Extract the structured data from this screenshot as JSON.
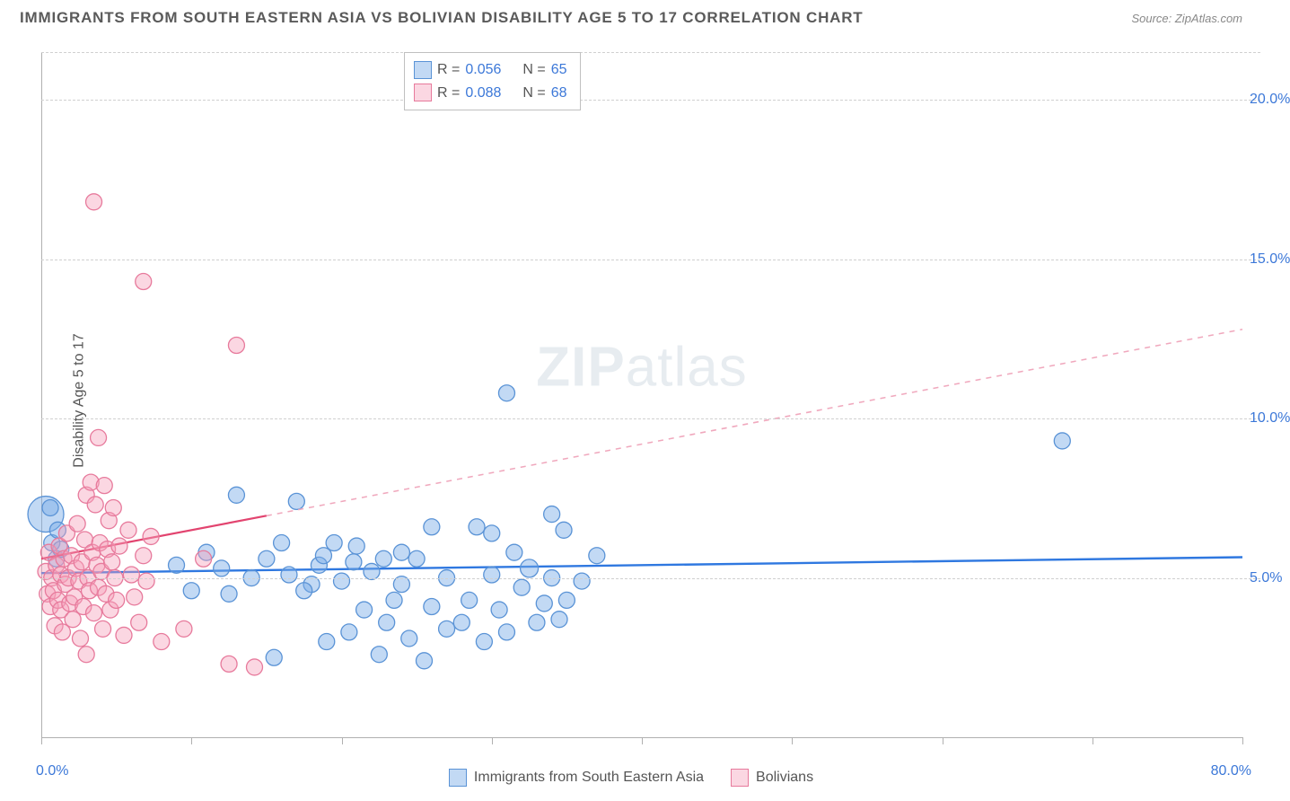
{
  "header": {
    "title": "IMMIGRANTS FROM SOUTH EASTERN ASIA VS BOLIVIAN DISABILITY AGE 5 TO 17 CORRELATION CHART",
    "source": "Source: ZipAtlas.com"
  },
  "watermark": {
    "bold": "ZIP",
    "light": "atlas"
  },
  "chart": {
    "type": "scatter",
    "y_axis_title": "Disability Age 5 to 17",
    "x_min": 0.0,
    "x_max": 80.0,
    "y_min": 0.0,
    "y_max": 21.5,
    "y_gridlines": [
      5.0,
      10.0,
      15.0,
      20.0
    ],
    "y_tick_labels": [
      "5.0%",
      "10.0%",
      "15.0%",
      "20.0%"
    ],
    "x_ticks": [
      0,
      10,
      20,
      30,
      40,
      50,
      60,
      70,
      80
    ],
    "x_zero_label": "0.0%",
    "x_max_label": "80.0%",
    "background_color": "#ffffff",
    "grid_color": "#d0d0d0",
    "axis_color": "#b0b0b0",
    "tick_label_color": "#3c78d8",
    "point_radius": 9,
    "series": [
      {
        "key": "blue",
        "name": "Immigrants from South Eastern Asia",
        "fill": "rgba(120,170,230,0.45)",
        "stroke": "#5a93d6",
        "R": "0.056",
        "N": "65",
        "trend": {
          "y_at_xmin": 5.15,
          "y_at_xmax": 5.65,
          "solid_until_x": 80,
          "solid_color": "#2f78e0",
          "dash_color": "#2f78e0",
          "width": 2.4
        },
        "points": [
          [
            0.3,
            7.0,
            20
          ],
          [
            0.6,
            7.2,
            9
          ],
          [
            0.7,
            6.1,
            9
          ],
          [
            1.0,
            5.6,
            9
          ],
          [
            1.1,
            6.5,
            9
          ],
          [
            1.3,
            5.9,
            9
          ],
          [
            9,
            5.4,
            9
          ],
          [
            10,
            4.6,
            9
          ],
          [
            11,
            5.8,
            9
          ],
          [
            12,
            5.3,
            9
          ],
          [
            12.5,
            4.5,
            9
          ],
          [
            13,
            7.6,
            9
          ],
          [
            14,
            5.0,
            9
          ],
          [
            15,
            5.6,
            9
          ],
          [
            15.5,
            2.5,
            9
          ],
          [
            16,
            6.1,
            9
          ],
          [
            16.5,
            5.1,
            9
          ],
          [
            17,
            7.4,
            9
          ],
          [
            18,
            4.8,
            9
          ],
          [
            18.5,
            5.4,
            9
          ],
          [
            19,
            3.0,
            9
          ],
          [
            20,
            4.9,
            9
          ],
          [
            20.5,
            3.3,
            9
          ],
          [
            21,
            6.0,
            9
          ],
          [
            22,
            5.2,
            9
          ],
          [
            22.5,
            2.6,
            9
          ],
          [
            23,
            3.6,
            9
          ],
          [
            24,
            4.8,
            9
          ],
          [
            24.5,
            3.1,
            9
          ],
          [
            25,
            5.6,
            9
          ],
          [
            25.5,
            2.4,
            9
          ],
          [
            26,
            4.1,
            9
          ],
          [
            26,
            6.6,
            9
          ],
          [
            27,
            3.4,
            9
          ],
          [
            27,
            5.0,
            9
          ],
          [
            28,
            3.6,
            9
          ],
          [
            28.5,
            4.3,
            9
          ],
          [
            29,
            6.6,
            9
          ],
          [
            29.5,
            3.0,
            9
          ],
          [
            30,
            5.1,
            9
          ],
          [
            30,
            6.4,
            9
          ],
          [
            30.5,
            4.0,
            9
          ],
          [
            31,
            3.3,
            9
          ],
          [
            31.5,
            5.8,
            9
          ],
          [
            32,
            4.7,
            9
          ],
          [
            32.5,
            5.3,
            10
          ],
          [
            33,
            3.6,
            9
          ],
          [
            33.5,
            4.2,
            9
          ],
          [
            34,
            5.0,
            9
          ],
          [
            34.5,
            3.7,
            9
          ],
          [
            34.8,
            6.5,
            9
          ],
          [
            35,
            4.3,
            9
          ],
          [
            36,
            4.9,
            9
          ],
          [
            37,
            5.7,
            9
          ],
          [
            31,
            10.8,
            9
          ],
          [
            24,
            5.8,
            9
          ],
          [
            23.5,
            4.3,
            9
          ],
          [
            22.8,
            5.6,
            9
          ],
          [
            21.5,
            4.0,
            9
          ],
          [
            20.8,
            5.5,
            9
          ],
          [
            19.5,
            6.1,
            9
          ],
          [
            18.8,
            5.7,
            9
          ],
          [
            17.5,
            4.6,
            9
          ],
          [
            68,
            9.3,
            9
          ],
          [
            34,
            7.0,
            9
          ]
        ]
      },
      {
        "key": "pink",
        "name": "Bolivians",
        "fill": "rgba(245,160,185,0.42)",
        "stroke": "#e77a9c",
        "R": "0.088",
        "N": "68",
        "trend": {
          "y_at_xmin": 5.6,
          "y_at_xmax": 12.8,
          "solid_until_x": 15,
          "solid_color": "#e2446f",
          "dash_color": "#f0a8bd",
          "width": 2.2
        },
        "points": [
          [
            0.3,
            5.2,
            9
          ],
          [
            0.4,
            4.5,
            9
          ],
          [
            0.5,
            5.8,
            9
          ],
          [
            0.6,
            4.1,
            9
          ],
          [
            0.7,
            5.0,
            9
          ],
          [
            0.8,
            4.6,
            9
          ],
          [
            0.9,
            3.5,
            9
          ],
          [
            1.0,
            5.4,
            9
          ],
          [
            1.1,
            4.3,
            9
          ],
          [
            1.2,
            6.0,
            9
          ],
          [
            1.3,
            5.1,
            9
          ],
          [
            1.3,
            4.0,
            9
          ],
          [
            1.4,
            3.3,
            9
          ],
          [
            1.5,
            5.6,
            9
          ],
          [
            1.6,
            4.8,
            9
          ],
          [
            1.7,
            6.4,
            9
          ],
          [
            1.8,
            5.0,
            9
          ],
          [
            1.9,
            4.2,
            9
          ],
          [
            2.0,
            5.7,
            9
          ],
          [
            2.1,
            3.7,
            9
          ],
          [
            2.2,
            4.4,
            9
          ],
          [
            2.3,
            5.3,
            9
          ],
          [
            2.4,
            6.7,
            9
          ],
          [
            2.5,
            4.9,
            9
          ],
          [
            2.6,
            3.1,
            9
          ],
          [
            2.7,
            5.5,
            9
          ],
          [
            2.8,
            4.1,
            9
          ],
          [
            2.9,
            6.2,
            9
          ],
          [
            3.0,
            7.6,
            9
          ],
          [
            3.1,
            5.0,
            9
          ],
          [
            3.2,
            4.6,
            9
          ],
          [
            3.3,
            8.0,
            9
          ],
          [
            3.4,
            5.8,
            9
          ],
          [
            3.5,
            3.9,
            9
          ],
          [
            3.6,
            7.3,
            9
          ],
          [
            3.7,
            5.4,
            9
          ],
          [
            3.8,
            4.7,
            9
          ],
          [
            3.9,
            6.1,
            9
          ],
          [
            4.0,
            5.2,
            9
          ],
          [
            4.1,
            3.4,
            9
          ],
          [
            4.2,
            7.9,
            9
          ],
          [
            4.3,
            4.5,
            9
          ],
          [
            4.4,
            5.9,
            9
          ],
          [
            4.5,
            6.8,
            9
          ],
          [
            4.6,
            4.0,
            9
          ],
          [
            4.7,
            5.5,
            9
          ],
          [
            4.8,
            7.2,
            9
          ],
          [
            4.9,
            5.0,
            9
          ],
          [
            5.0,
            4.3,
            9
          ],
          [
            5.2,
            6.0,
            9
          ],
          [
            5.5,
            3.2,
            9
          ],
          [
            5.8,
            6.5,
            9
          ],
          [
            6.0,
            5.1,
            9
          ],
          [
            6.2,
            4.4,
            9
          ],
          [
            6.5,
            3.6,
            9
          ],
          [
            6.8,
            5.7,
            9
          ],
          [
            7.0,
            4.9,
            9
          ],
          [
            7.3,
            6.3,
            9
          ],
          [
            8.0,
            3.0,
            9
          ],
          [
            9.5,
            3.4,
            9
          ],
          [
            10.8,
            5.6,
            9
          ],
          [
            12.5,
            2.3,
            9
          ],
          [
            14.2,
            2.2,
            9
          ],
          [
            3.0,
            2.6,
            9
          ],
          [
            3.5,
            16.8,
            9
          ],
          [
            3.8,
            9.4,
            9
          ],
          [
            6.8,
            14.3,
            9
          ],
          [
            13.0,
            12.3,
            9
          ]
        ]
      }
    ]
  },
  "legend_box": {
    "rows": [
      {
        "swatch": "blue",
        "R_label": "R =",
        "R_val": "0.056",
        "N_label": "N =",
        "N_val": "65"
      },
      {
        "swatch": "pink",
        "R_label": "R =",
        "R_val": "0.088",
        "N_label": "N =",
        "N_val": "68"
      }
    ]
  },
  "bottom_legend": [
    {
      "swatch": "blue",
      "label": "Immigrants from South Eastern Asia"
    },
    {
      "swatch": "pink",
      "label": "Bolivians"
    }
  ]
}
